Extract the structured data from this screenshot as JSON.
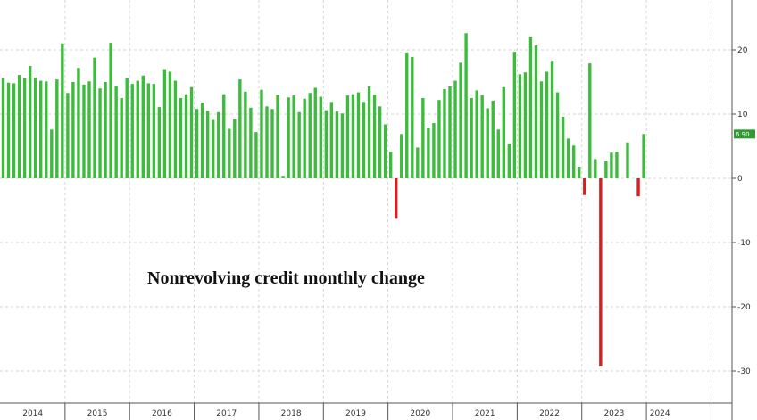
{
  "chart_data": {
    "type": "bar",
    "title": "Nonrevolving credit monthly change",
    "xlabel": "",
    "ylabel": "",
    "ylim": [
      -32,
      27
    ],
    "y_ticks": [
      20,
      10,
      0,
      -10,
      -20,
      -30
    ],
    "y_axis_side": "right",
    "grid": true,
    "year_labels": [
      "2014",
      "2015",
      "2016",
      "2017",
      "2018",
      "2019",
      "2020",
      "2021",
      "2022",
      "2023",
      "2024"
    ],
    "first_period": "2014-01",
    "colors": {
      "positive": "#3dbb3d",
      "negative": "#d42020",
      "badge": "#2e9c2e"
    },
    "last_value_label": "6.90",
    "values": [
      15.6,
      14.9,
      14.8,
      16.1,
      15.6,
      17.5,
      15.7,
      15.2,
      15.1,
      7.6,
      15.4,
      21.0,
      13.3,
      15.0,
      17.2,
      14.6,
      15.1,
      18.8,
      14.0,
      15.0,
      21.1,
      14.4,
      12.5,
      15.6,
      14.7,
      15.2,
      16.0,
      14.8,
      14.7,
      11.1,
      17.0,
      16.6,
      15.2,
      12.5,
      13.1,
      14.2,
      10.8,
      11.8,
      10.5,
      9.1,
      10.3,
      13.1,
      7.7,
      9.2,
      15.4,
      13.5,
      11.0,
      7.2,
      13.8,
      11.2,
      10.8,
      13.0,
      0.4,
      12.6,
      12.9,
      10.3,
      12.4,
      13.3,
      14.1,
      12.7,
      10.6,
      11.9,
      10.4,
      10.1,
      12.9,
      13.1,
      13.4,
      11.9,
      14.3,
      13.0,
      11.2,
      8.4,
      4.1,
      -6.3,
      6.9,
      19.6,
      18.9,
      4.8,
      12.5,
      7.9,
      8.6,
      12.2,
      13.9,
      14.3,
      15.2,
      18.0,
      22.6,
      12.5,
      13.7,
      12.9,
      10.9,
      12.1,
      7.6,
      14.2,
      5.4,
      19.7,
      16.2,
      16.5,
      22.1,
      20.7,
      15.1,
      16.6,
      18.3,
      13.4,
      9.6,
      6.2,
      5.1,
      1.8,
      -2.6,
      17.9,
      3.0,
      -29.3,
      2.7,
      4.0,
      4.1,
      0.0,
      5.6,
      0.0,
      -2.8,
      6.9
    ]
  }
}
